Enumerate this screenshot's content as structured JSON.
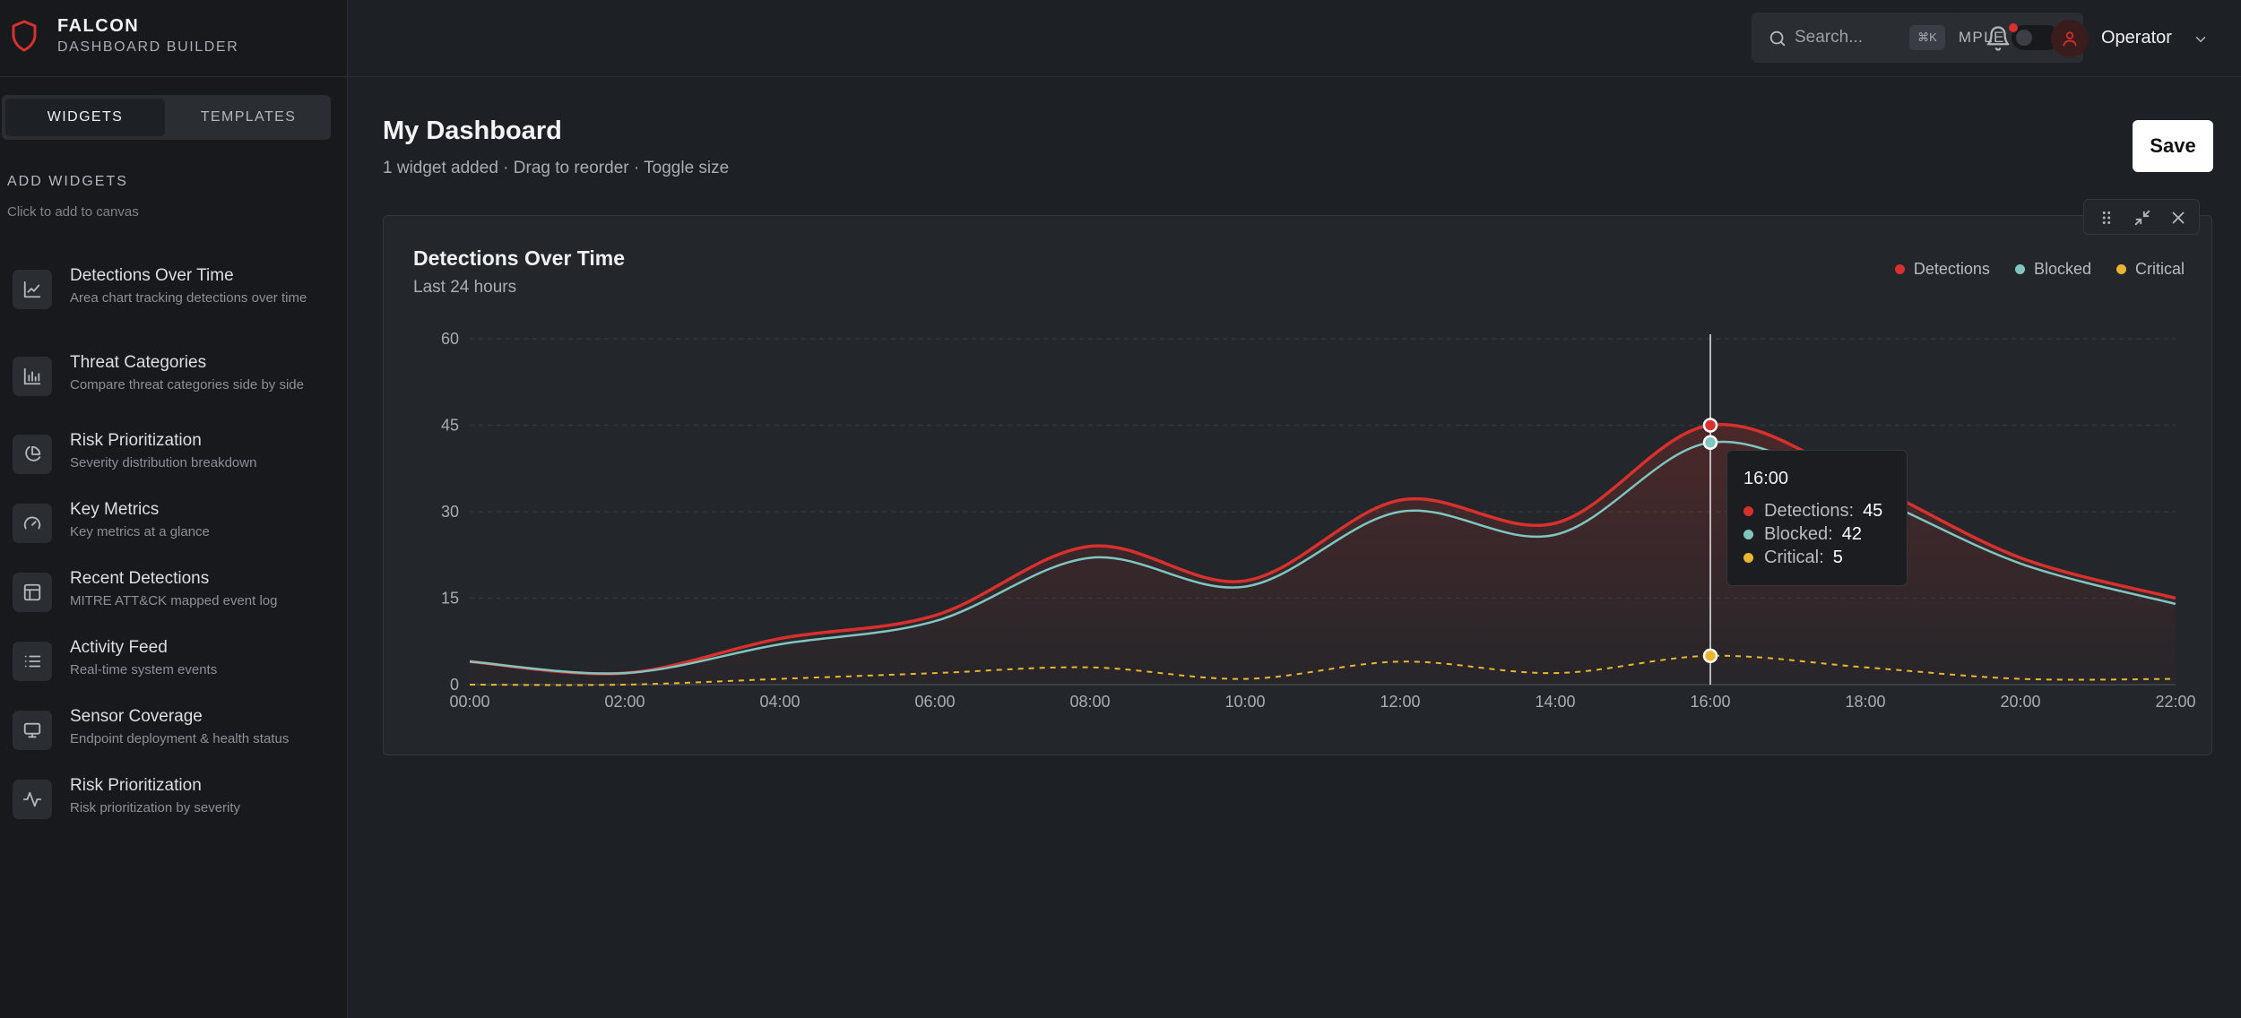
{
  "brand": {
    "title": "FALCON",
    "subtitle": "DASHBOARD BUILDER",
    "icon": "shield-icon"
  },
  "sidebar": {
    "tabs": [
      {
        "label": "WIDGETS",
        "active": true
      },
      {
        "label": "TEMPLATES",
        "active": false
      }
    ],
    "section_title": "ADD WIDGETS",
    "section_hint": "Click to add to canvas",
    "items": [
      {
        "name": "Detections Over Time",
        "desc": "Area chart tracking detections over time",
        "icon": "line-chart-icon"
      },
      {
        "name": "Threat Categories",
        "desc": "Compare threat categories side by side",
        "icon": "bar-chart-icon"
      },
      {
        "name": "Risk Prioritization",
        "desc": "Severity distribution breakdown",
        "icon": "pie-chart-icon"
      },
      {
        "name": "Key Metrics",
        "desc": "Key metrics at a glance",
        "icon": "gauge-icon"
      },
      {
        "name": "Recent Detections",
        "desc": "MITRE ATT&CK mapped event log",
        "icon": "table-icon"
      },
      {
        "name": "Activity Feed",
        "desc": "Real-time system events",
        "icon": "list-icon"
      },
      {
        "name": "Sensor Coverage",
        "desc": "Endpoint deployment & health status",
        "icon": "monitor-icon"
      },
      {
        "name": "Risk Prioritization",
        "desc": "Risk prioritization by severity",
        "icon": "activity-icon"
      }
    ]
  },
  "header": {
    "mode_label": "SIMPLE",
    "mode_on": false,
    "search_placeholder": "Search...",
    "search_shortcut": "⌘K",
    "user_name": "Operator"
  },
  "main": {
    "title": "My Dashboard",
    "subtitle": "1 widget added · Drag to reorder · Toggle size",
    "save_label": "Save"
  },
  "colors": {
    "detections": "#d8302c",
    "blocked": "#7fc6c0",
    "critical": "#e9b631"
  },
  "chart_data": {
    "type": "area",
    "title": "Detections Over Time",
    "subtitle": "Last 24 hours",
    "x": [
      "00:00",
      "02:00",
      "04:00",
      "06:00",
      "08:00",
      "10:00",
      "12:00",
      "14:00",
      "16:00",
      "18:00",
      "20:00",
      "22:00"
    ],
    "yticks": [
      0,
      15,
      30,
      45,
      60
    ],
    "ylim": [
      0,
      60
    ],
    "grid": true,
    "legend_position": "top-right",
    "series": [
      {
        "name": "Detections",
        "values": [
          4,
          2,
          8,
          12,
          24,
          18,
          32,
          28,
          45,
          35,
          22,
          15
        ]
      },
      {
        "name": "Blocked",
        "values": [
          4,
          2,
          7,
          11,
          22,
          17,
          30,
          26,
          42,
          33,
          21,
          14
        ]
      },
      {
        "name": "Critical",
        "values": [
          0,
          0,
          1,
          2,
          3,
          1,
          4,
          2,
          5,
          3,
          1,
          1
        ]
      }
    ],
    "tooltip": {
      "x": "16:00",
      "rows": [
        {
          "name": "Detections",
          "value": 45
        },
        {
          "name": "Blocked",
          "value": 42
        },
        {
          "name": "Critical",
          "value": 5
        }
      ]
    }
  }
}
